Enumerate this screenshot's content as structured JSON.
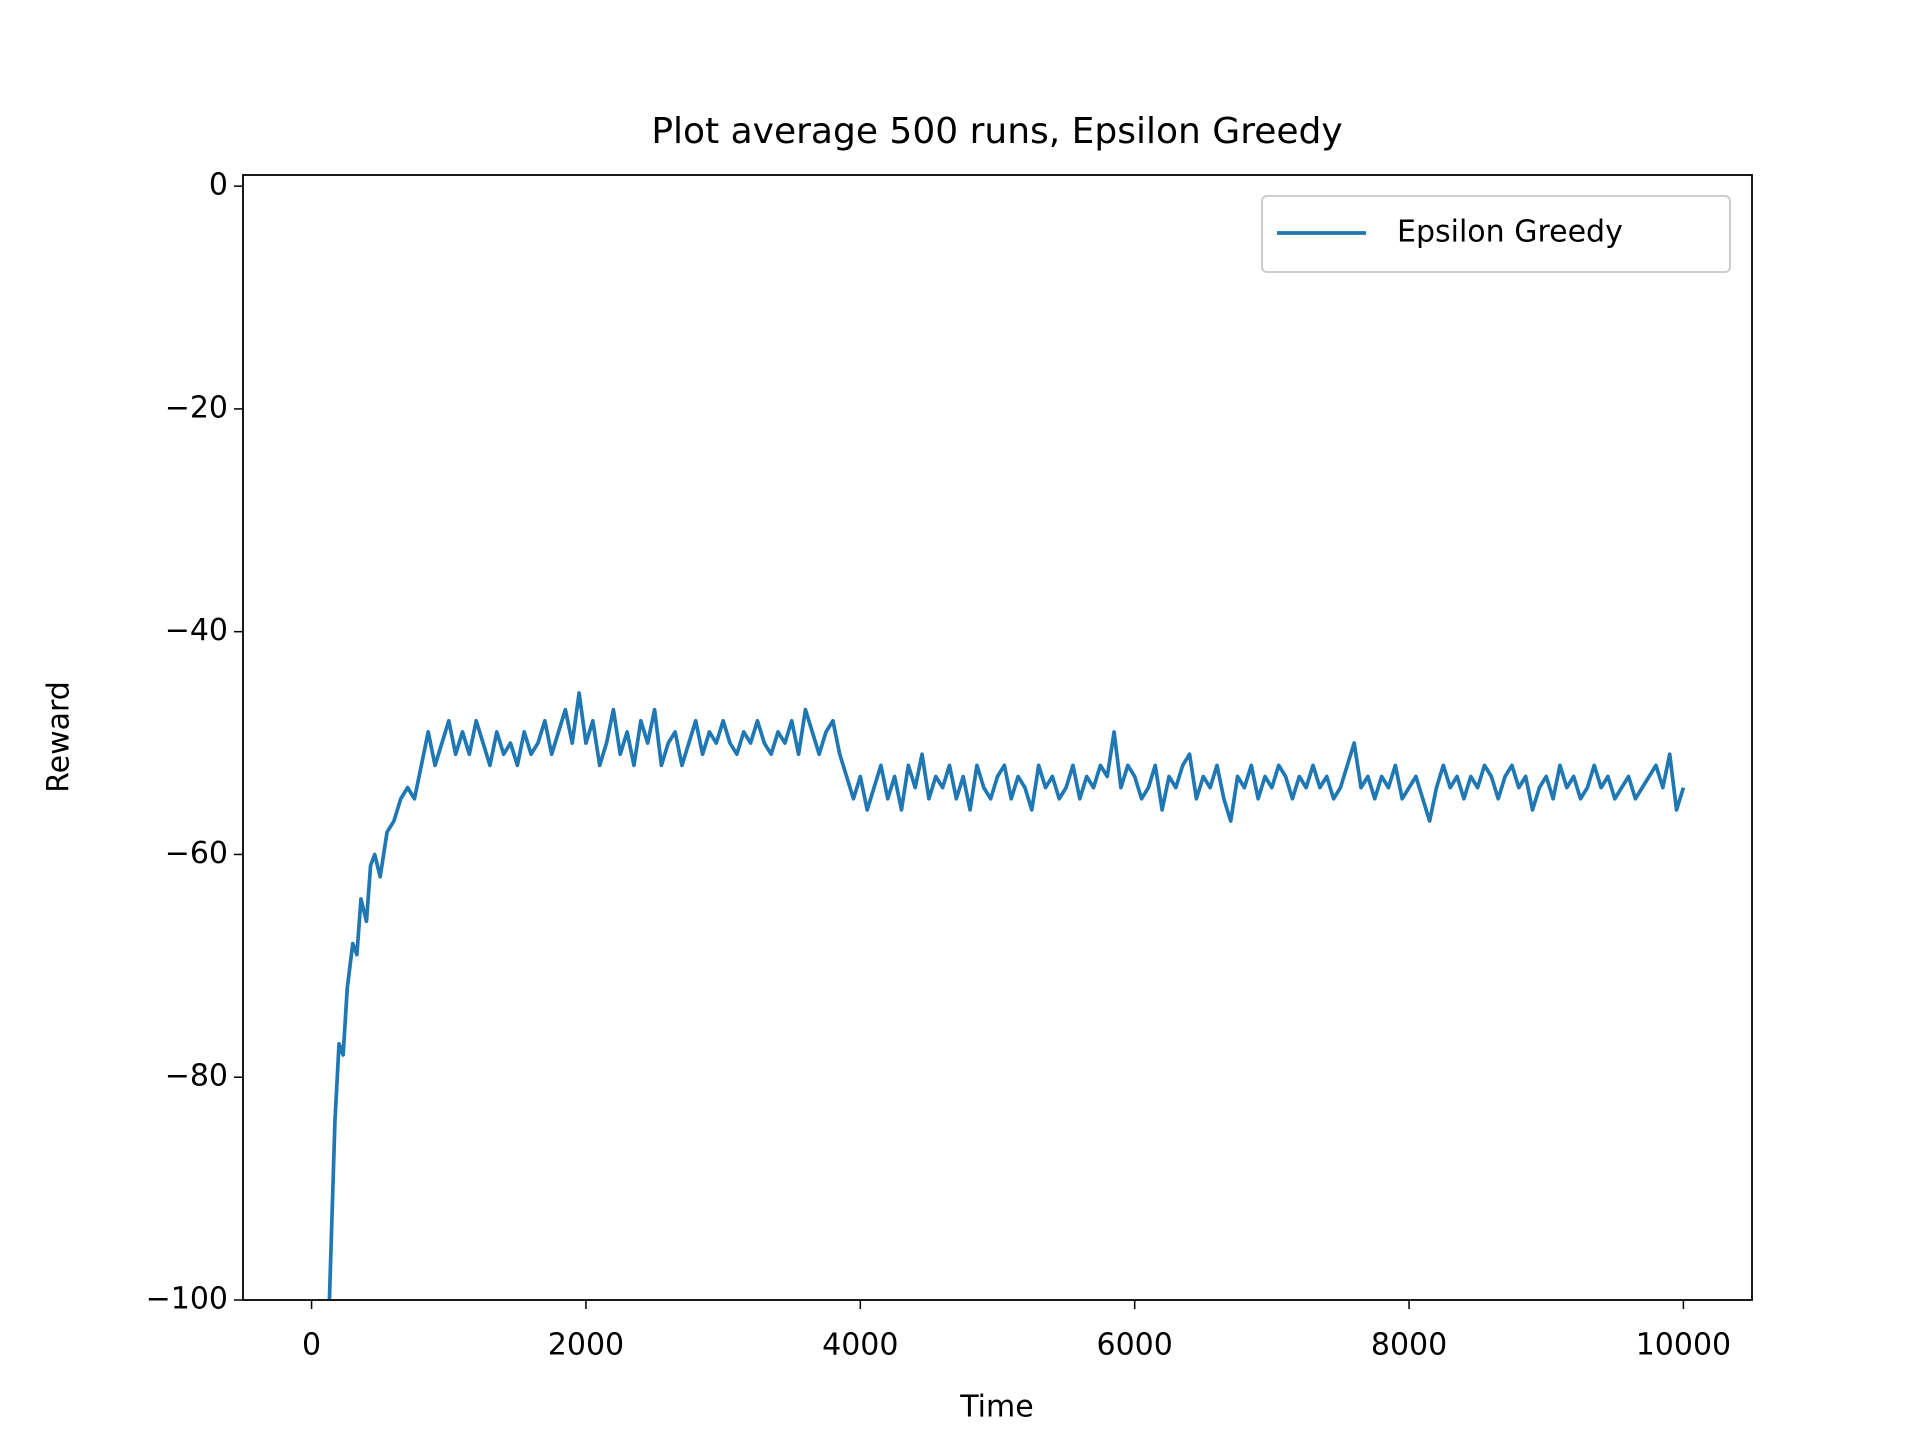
{
  "chart_data": {
    "type": "line",
    "title": "Plot average 500 runs, Epsilon Greedy",
    "x_label": "Time",
    "y_label": "Reward",
    "xlim": [
      -500,
      10500
    ],
    "ylim": [
      -100,
      1
    ],
    "xticks": [
      0,
      2000,
      4000,
      6000,
      8000,
      10000
    ],
    "yticks": [
      {
        "value": -100,
        "label": "−100"
      },
      {
        "value": -80,
        "label": "−80"
      },
      {
        "value": -60,
        "label": "−60"
      },
      {
        "value": -40,
        "label": "−40"
      },
      {
        "value": -20,
        "label": "−20"
      },
      0
    ],
    "grid": false,
    "legend": "upper right",
    "x": [
      130,
      150,
      170,
      200,
      230,
      260,
      300,
      330,
      360,
      400,
      430,
      460,
      500,
      550,
      600,
      650,
      700,
      750,
      800,
      850,
      900,
      950,
      1000,
      1050,
      1100,
      1150,
      1200,
      1250,
      1300,
      1350,
      1400,
      1450,
      1500,
      1550,
      1600,
      1650,
      1700,
      1750,
      1800,
      1850,
      1900,
      1950,
      2000,
      2050,
      2100,
      2150,
      2200,
      2250,
      2300,
      2350,
      2400,
      2450,
      2500,
      2550,
      2600,
      2650,
      2700,
      2750,
      2800,
      2850,
      2900,
      2950,
      3000,
      3050,
      3100,
      3150,
      3200,
      3250,
      3300,
      3350,
      3400,
      3450,
      3500,
      3550,
      3600,
      3650,
      3700,
      3750,
      3800,
      3850,
      3900,
      3950,
      4000,
      4050,
      4100,
      4150,
      4200,
      4250,
      4300,
      4350,
      4400,
      4450,
      4500,
      4550,
      4600,
      4650,
      4700,
      4750,
      4800,
      4850,
      4900,
      4950,
      5000,
      5050,
      5100,
      5150,
      5200,
      5250,
      5300,
      5350,
      5400,
      5450,
      5500,
      5550,
      5600,
      5650,
      5700,
      5750,
      5800,
      5850,
      5900,
      5950,
      6000,
      6050,
      6100,
      6150,
      6200,
      6250,
      6300,
      6350,
      6400,
      6450,
      6500,
      6550,
      6600,
      6650,
      6700,
      6750,
      6800,
      6850,
      6900,
      6950,
      7000,
      7050,
      7100,
      7150,
      7200,
      7250,
      7300,
      7350,
      7400,
      7450,
      7500,
      7550,
      7600,
      7650,
      7700,
      7750,
      7800,
      7850,
      7900,
      7950,
      8000,
      8050,
      8100,
      8150,
      8200,
      8250,
      8300,
      8350,
      8400,
      8450,
      8500,
      8550,
      8600,
      8650,
      8700,
      8750,
      8800,
      8850,
      8900,
      8950,
      9000,
      9050,
      9100,
      9150,
      9200,
      9250,
      9300,
      9350,
      9400,
      9450,
      9500,
      9550,
      9600,
      9650,
      9700,
      9750,
      9800,
      9850,
      9900,
      9950,
      10000
    ],
    "series": [
      {
        "name": "Epsilon Greedy",
        "color": "#1f77b4",
        "values": [
          -100,
          -92,
          -84,
          -77,
          -78,
          -72,
          -68,
          -69,
          -64,
          -66,
          -61,
          -60,
          -62,
          -58,
          -57,
          -55,
          -54,
          -55,
          -52,
          -49,
          -52,
          -50,
          -48,
          -51,
          -49,
          -51,
          -48,
          -50,
          -52,
          -49,
          -51,
          -50,
          -52,
          -49,
          -51,
          -50,
          -48,
          -51,
          -49,
          -47,
          -50,
          -45.5,
          -50,
          -48,
          -52,
          -50,
          -47,
          -51,
          -49,
          -52,
          -48,
          -50,
          -47,
          -52,
          -50,
          -49,
          -52,
          -50,
          -48,
          -51,
          -49,
          -50,
          -48,
          -50,
          -51,
          -49,
          -50,
          -48,
          -50,
          -51,
          -49,
          -50,
          -48,
          -51,
          -47,
          -49,
          -51,
          -49,
          -48,
          -51,
          -53,
          -55,
          -53,
          -56,
          -54,
          -52,
          -55,
          -53,
          -56,
          -52,
          -54,
          -51,
          -55,
          -53,
          -54,
          -52,
          -55,
          -53,
          -56,
          -52,
          -54,
          -55,
          -53,
          -52,
          -55,
          -53,
          -54,
          -56,
          -52,
          -54,
          -53,
          -55,
          -54,
          -52,
          -55,
          -53,
          -54,
          -52,
          -53,
          -49,
          -54,
          -52,
          -53,
          -55,
          -54,
          -52,
          -56,
          -53,
          -54,
          -52,
          -51,
          -55,
          -53,
          -54,
          -52,
          -55,
          -57,
          -53,
          -54,
          -52,
          -55,
          -53,
          -54,
          -52,
          -53,
          -55,
          -53,
          -54,
          -52,
          -54,
          -53,
          -55,
          -54,
          -52,
          -50,
          -54,
          -53,
          -55,
          -53,
          -54,
          -52,
          -55,
          -54,
          -53,
          -55,
          -57,
          -54,
          -52,
          -54,
          -53,
          -55,
          -53,
          -54,
          -52,
          -53,
          -55,
          -53,
          -52,
          -54,
          -53,
          -56,
          -54,
          -53,
          -55,
          -52,
          -54,
          -53,
          -55,
          -54,
          -52,
          -54,
          -53,
          -55,
          -54,
          -53,
          -55,
          -54,
          -53,
          -52,
          -54,
          -51,
          -56,
          -54
        ]
      }
    ]
  }
}
